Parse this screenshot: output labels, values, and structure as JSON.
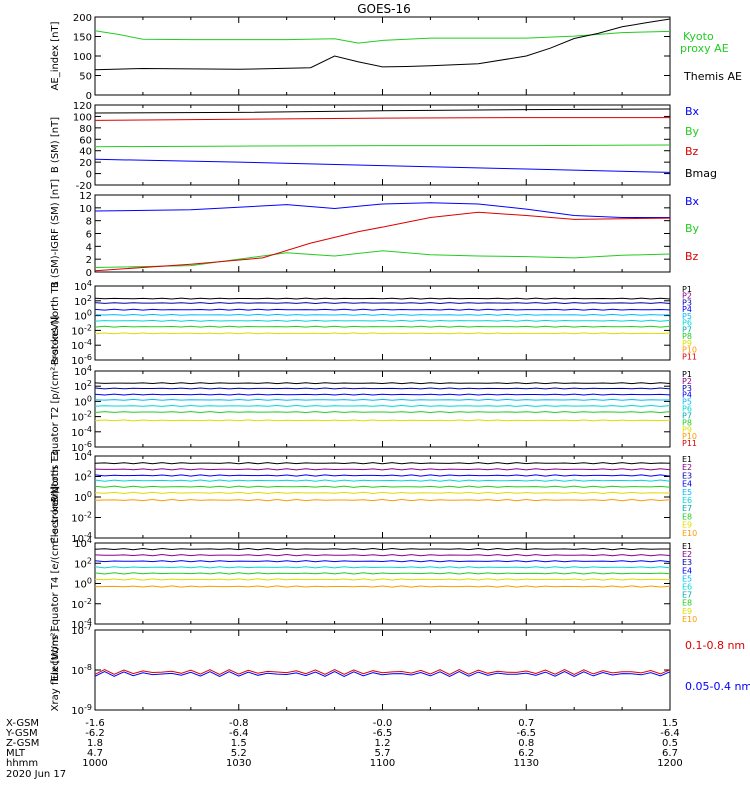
{
  "title": "GOES-16",
  "colors": {
    "black": "#000000",
    "blue": "#0000ff",
    "green": "#22cc22",
    "red": "#dd0000",
    "lime": "#00ee00",
    "navy": "#0000aa",
    "cyan": "#00d8d8",
    "yellow": "#dddd00",
    "orange": "#ff9900",
    "lightgreen": "#66ff66",
    "teal": "#00aaaa",
    "skyblue": "#00bbff",
    "darkred": "#cc0000",
    "purple": "#880088"
  },
  "bottom_axis": {
    "rows": [
      {
        "label": "X-GSM",
        "values": [
          "-1.6",
          "-0.8",
          "-0.0",
          "0.7",
          "1.5"
        ]
      },
      {
        "label": "Y-GSM",
        "values": [
          "-6.2",
          "-6.4",
          "-6.5",
          "-6.5",
          "-6.4"
        ]
      },
      {
        "label": "Z-GSM",
        "values": [
          "1.8",
          "1.5",
          "1.2",
          "0.8",
          "0.5"
        ]
      },
      {
        "label": "MLT",
        "values": [
          "4.7",
          "5.2",
          "5.7",
          "6.2",
          "6.7"
        ]
      },
      {
        "label": "hhmm",
        "values": [
          "1000",
          "1030",
          "1100",
          "1130",
          "1200"
        ]
      }
    ],
    "date": "2020 Jun 17"
  },
  "chart_data": [
    {
      "type": "line",
      "ylabel": "AE_index [nT]",
      "ylim": [
        0,
        200
      ],
      "yticks": [
        "0",
        "50",
        "100",
        "150",
        "200"
      ],
      "x_range": [
        "1000",
        "1200"
      ],
      "legend": [
        "Kyoto proxy AE",
        "Themis AE"
      ],
      "series": [
        {
          "name": "Kyoto proxy AE",
          "color": "#22cc22",
          "x": [
            0,
            5,
            10,
            20,
            40,
            50,
            55,
            60,
            70,
            90,
            100,
            110,
            120
          ],
          "y": [
            165,
            155,
            143,
            142,
            142,
            144,
            133,
            140,
            146,
            146,
            151,
            160,
            163
          ]
        },
        {
          "name": "Themis AE",
          "color": "#000000",
          "x": [
            0,
            10,
            30,
            45,
            50,
            55,
            60,
            65,
            70,
            80,
            90,
            95,
            100,
            105,
            110,
            115,
            120
          ],
          "y": [
            65,
            68,
            66,
            70,
            100,
            85,
            72,
            73,
            75,
            80,
            100,
            120,
            145,
            158,
            175,
            185,
            195
          ]
        }
      ]
    },
    {
      "type": "line",
      "ylabel": "B (SM) [nT]",
      "ylim": [
        -20,
        120
      ],
      "yticks": [
        "-20",
        "0",
        "20",
        "40",
        "60",
        "80",
        "100",
        "120"
      ],
      "legend": [
        "Bx",
        "By",
        "Bz",
        "Bmag"
      ],
      "series": [
        {
          "name": "Bx",
          "color": "#0000ff",
          "x": [
            0,
            30,
            60,
            90,
            120
          ],
          "y": [
            25,
            20,
            14,
            8,
            2
          ]
        },
        {
          "name": "By",
          "color": "#22cc22",
          "x": [
            0,
            30,
            60,
            90,
            120
          ],
          "y": [
            47,
            48,
            49,
            49,
            50
          ]
        },
        {
          "name": "Bz",
          "color": "#dd0000",
          "x": [
            0,
            30,
            60,
            90,
            120
          ],
          "y": [
            93,
            95,
            97,
            98,
            98
          ]
        },
        {
          "name": "Bmag",
          "color": "#000000",
          "x": [
            0,
            30,
            60,
            90,
            120
          ],
          "y": [
            106,
            107,
            110,
            112,
            113
          ]
        }
      ]
    },
    {
      "type": "line",
      "ylabel": "B (SM)-IGRF (SM) [nT]",
      "ylim": [
        0,
        12
      ],
      "yticks": [
        "0",
        "2",
        "4",
        "6",
        "8",
        "10",
        "12"
      ],
      "legend": [
        "Bx",
        "By",
        "Bz"
      ],
      "series": [
        {
          "name": "Bx",
          "color": "#0000ff",
          "x": [
            0,
            20,
            40,
            50,
            60,
            70,
            80,
            90,
            100,
            110,
            120
          ],
          "y": [
            9.5,
            9.7,
            10.5,
            9.9,
            10.6,
            10.8,
            10.6,
            9.8,
            8.8,
            8.5,
            8.5
          ]
        },
        {
          "name": "By",
          "color": "#22cc22",
          "x": [
            0,
            20,
            40,
            50,
            60,
            70,
            80,
            90,
            100,
            110,
            120
          ],
          "y": [
            0.7,
            1.0,
            3.0,
            2.5,
            3.3,
            2.7,
            2.5,
            2.4,
            2.2,
            2.6,
            2.8
          ]
        },
        {
          "name": "Bz",
          "color": "#dd0000",
          "x": [
            0,
            20,
            35,
            45,
            55,
            60,
            70,
            80,
            90,
            100,
            110,
            120
          ],
          "y": [
            0.2,
            1.2,
            2.2,
            4.5,
            6.3,
            7.0,
            8.5,
            9.3,
            8.8,
            8.2,
            8.3,
            8.4
          ]
        }
      ]
    },
    {
      "type": "line",
      "yscale": "log",
      "ylabel": "Protons North T1",
      "ylim": [
        -6,
        4
      ],
      "yticks": [
        "10^4",
        "10^2",
        "10^0",
        "10^-2",
        "10^-4",
        "10^-6"
      ],
      "legend": [
        "P1",
        "P2",
        "P3",
        "P4",
        "P5",
        "P6",
        "P7",
        "P8",
        "P9",
        "P10",
        "P11"
      ],
      "legend_colors": [
        "#000000",
        "#880088",
        "#0000aa",
        "#0000ff",
        "#00bbff",
        "#00d8d8",
        "#00aaaa",
        "#22cc22",
        "#dddd00",
        "#ff9900",
        "#dd0000"
      ],
      "series": [
        {
          "name": "P1",
          "color": "#000000",
          "y_log": 2.3
        },
        {
          "name": "P2",
          "color": "#0000aa",
          "y_log": 1.7
        },
        {
          "name": "P3",
          "color": "#0000ff",
          "y_log": 0.8
        },
        {
          "name": "P4",
          "color": "#00bbff",
          "y_log": 0.1
        },
        {
          "name": "P5",
          "color": "#00d8d8",
          "y_log": -0.7
        },
        {
          "name": "P6",
          "color": "#22cc22",
          "y_log": -1.5
        },
        {
          "name": "P7",
          "color": "#dddd00",
          "y_log": -2.4
        }
      ]
    },
    {
      "type": "line",
      "yscale": "log",
      "ylabel": "Protons Equator T2 [p/(cm²-s-sr-keV)]",
      "ylim": [
        -6,
        4
      ],
      "yticks": [
        "10^4",
        "10^2",
        "10^0",
        "10^-2",
        "10^-4",
        "10^-6"
      ],
      "legend": [
        "P1",
        "P2",
        "P3",
        "P4",
        "P5",
        "P6",
        "P7",
        "P8",
        "P9",
        "P10",
        "P11"
      ],
      "series": [
        {
          "name": "P1",
          "color": "#000000",
          "y_log": 2.4
        },
        {
          "name": "P2",
          "color": "#0000aa",
          "y_log": 1.7
        },
        {
          "name": "P3",
          "color": "#0000ff",
          "y_log": 0.9
        },
        {
          "name": "P4",
          "color": "#00bbff",
          "y_log": 0.2
        },
        {
          "name": "P5",
          "color": "#00d8d8",
          "y_log": -0.6
        },
        {
          "name": "P6",
          "color": "#22cc22",
          "y_log": -1.4
        },
        {
          "name": "P7",
          "color": "#dddd00",
          "y_log": -2.5
        }
      ]
    },
    {
      "type": "line",
      "yscale": "log",
      "ylabel": "Electrons North T3",
      "ylim": [
        -4,
        4
      ],
      "yticks": [
        "10^4",
        "10^2",
        "10^0",
        "10^-2",
        "10^-4"
      ],
      "legend": [
        "E1",
        "E2",
        "E3",
        "E4",
        "E5",
        "E6",
        "E7",
        "E8",
        "E9",
        "E10"
      ],
      "series": [
        {
          "name": "E1",
          "color": "#000000",
          "y_log": 3.3
        },
        {
          "name": "E2",
          "color": "#880088",
          "y_log": 2.7
        },
        {
          "name": "E3",
          "color": "#0000ff",
          "y_log": 2.1
        },
        {
          "name": "E4",
          "color": "#00d8d8",
          "y_log": 1.6
        },
        {
          "name": "E5",
          "color": "#22cc22",
          "y_log": 1.0
        },
        {
          "name": "E6",
          "color": "#dddd00",
          "y_log": 0.4
        },
        {
          "name": "E7",
          "color": "#ff9900",
          "y_log": -0.3
        }
      ]
    },
    {
      "type": "line",
      "yscale": "log",
      "ylabel": "Electrons Equator T4 [e/(cm²-s-sr-keV)]",
      "ylim": [
        -4,
        4
      ],
      "yticks": [
        "10^4",
        "10^2",
        "10^0",
        "10^-2",
        "10^-4"
      ],
      "legend": [
        "E1",
        "E2",
        "E3",
        "E4",
        "E5",
        "E6",
        "E7",
        "E8",
        "E9",
        "E10"
      ],
      "series": [
        {
          "name": "E1",
          "color": "#000000",
          "y_log": 3.4
        },
        {
          "name": "E2",
          "color": "#880088",
          "y_log": 2.8
        },
        {
          "name": "E3",
          "color": "#0000ff",
          "y_log": 2.2
        },
        {
          "name": "E4",
          "color": "#00d8d8",
          "y_log": 1.6
        },
        {
          "name": "E5",
          "color": "#22cc22",
          "y_log": 1.0
        },
        {
          "name": "E6",
          "color": "#dddd00",
          "y_log": 0.4
        },
        {
          "name": "E7",
          "color": "#ff9900",
          "y_log": -0.3
        }
      ]
    },
    {
      "type": "line",
      "yscale": "log",
      "ylabel": "Xray flux [W/m²]",
      "ylim": [
        -9,
        -7
      ],
      "yticks": [
        "10^-7",
        "10^-8",
        "10^-9"
      ],
      "legend": [
        "0.1-0.8 nm",
        "0.05-0.4 nm"
      ],
      "series": [
        {
          "name": "0.1-0.8 nm",
          "color": "#dd0000",
          "y_log": -8.05
        },
        {
          "name": "0.05-0.4 nm",
          "color": "#0000ff",
          "y_log": -8.1
        }
      ]
    }
  ]
}
